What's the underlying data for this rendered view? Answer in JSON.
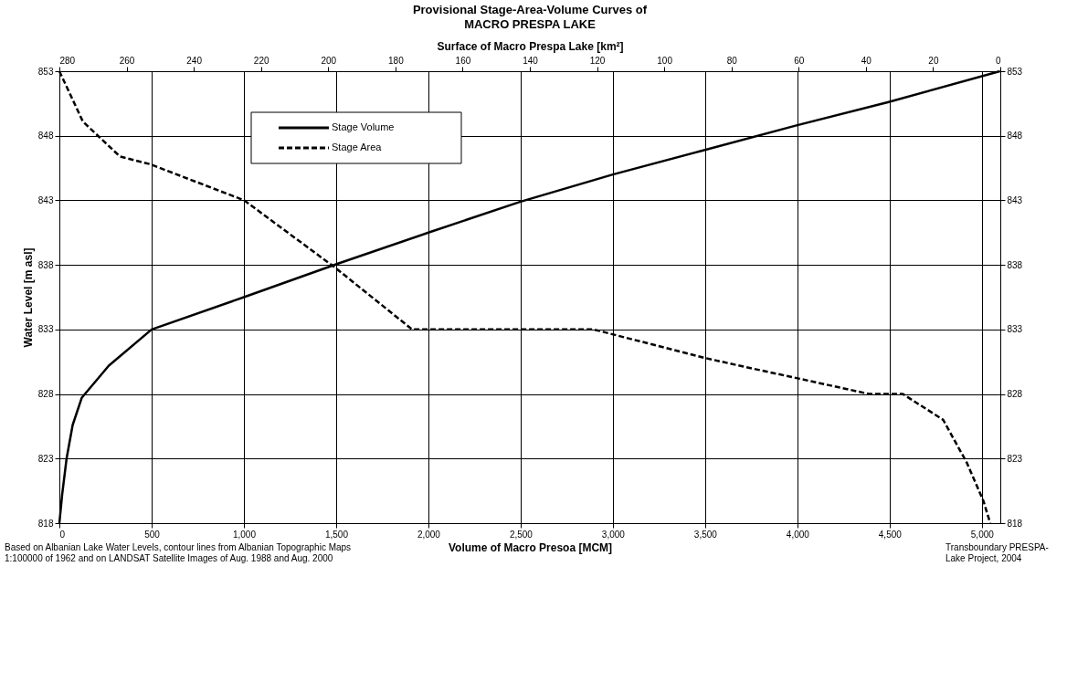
{
  "chart_data": {
    "type": "line",
    "title": "Provisional Stage-Area-Volume Curves of",
    "subtitle": "MACRO PRESPA LAKE",
    "xlabel": "Volume of Macro Presoa [MCM]",
    "x2label": "Surface of Macro Prespa Lake  [km²]",
    "ylabel": "Water Level  [m asl]",
    "xlim": [
      0,
      5100
    ],
    "xticks": [
      0,
      {
        "value": 500,
        "label": "500"
      },
      {
        "value": 1000,
        "label": "1,000"
      },
      {
        "value": 1500,
        "label": "1,500"
      },
      {
        "value": 2000,
        "label": "2,000"
      },
      {
        "value": 2500,
        "label": "2,500"
      },
      {
        "value": 3000,
        "label": "3,000"
      },
      {
        "value": 3500,
        "label": "3,500"
      },
      {
        "value": 4000,
        "label": "4,000"
      },
      {
        "value": 4500,
        "label": "4,500"
      },
      {
        "value": 5000,
        "label": "5,000"
      }
    ],
    "x2lim": [
      280,
      0
    ],
    "x2ticks": [
      280,
      260,
      240,
      220,
      200,
      180,
      160,
      140,
      120,
      100,
      80,
      60,
      40,
      20,
      0
    ],
    "ylim": [
      818,
      853
    ],
    "yticks": [
      818,
      823,
      828,
      833,
      838,
      843,
      848,
      853
    ],
    "y2lim": [
      818,
      853
    ],
    "y2ticks": [
      818,
      823,
      828,
      833,
      838,
      843,
      848,
      853
    ],
    "grid": true,
    "legend": "top left",
    "series": [
      {
        "name": "Stage Volume",
        "color": "#000000",
        "line_style": "solid",
        "x": [
          0,
          15,
          39,
          72,
          121,
          268,
          500,
          1000,
          1510,
          2000,
          2500,
          3000,
          3471,
          3995,
          4490,
          5098
        ],
        "values": [
          818,
          820.2,
          823,
          825.6,
          827.7,
          830.2,
          833,
          835.5,
          838.1,
          840.5,
          842.9,
          845.0,
          846.8,
          848.8,
          850.6,
          853
        ]
      },
      {
        "name": "Stage Area",
        "color": "#000000",
        "line_style": "dashed",
        "axis": "x2",
        "x": [
          280,
          273,
          262,
          253,
          225,
          198,
          175,
          121,
          88,
          76,
          60,
          39,
          29,
          17,
          10,
          5,
          3
        ],
        "values": [
          853,
          849.1,
          846.4,
          845.8,
          843,
          837.8,
          833,
          833,
          830.8,
          830.1,
          829.2,
          828,
          828,
          826,
          822.7,
          819.7,
          818
        ]
      }
    ],
    "annotations": [
      "Based on Albanian Lake Water Levels,  contour lines from Albanian Topographic Maps\n1:100000 of 1962 and on LANDSAT Satellite Images of Aug. 1988 and Aug. 2000",
      "Transboundary PRESPA-\nLake Project, 2004"
    ]
  }
}
